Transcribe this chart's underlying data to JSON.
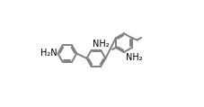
{
  "bg_color": "#ffffff",
  "bond_color": "#808080",
  "text_color": "#000000",
  "fig_width": 2.27,
  "fig_height": 1.19,
  "lw": 1.4,
  "dbo": 0.013,
  "r": 0.088,
  "shrink": 0.16,
  "fs": 7.0,
  "c1": [
    0.175,
    0.5
  ],
  "c2": [
    0.445,
    0.455
  ],
  "c3": [
    0.705,
    0.6
  ],
  "ao1": 0,
  "ao2": 0,
  "ao3": 30,
  "db1": [
    0,
    2,
    4
  ],
  "db2": [
    1,
    3,
    5
  ],
  "db3": [
    1,
    3,
    5
  ]
}
